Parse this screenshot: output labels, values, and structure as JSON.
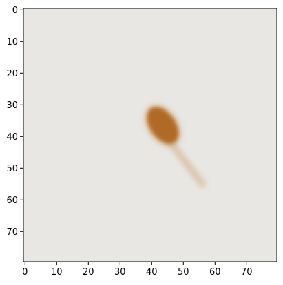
{
  "chart_data": {
    "type": "heatmap",
    "title": "",
    "xlabel": "",
    "ylabel": "",
    "image_size": [
      80,
      80
    ],
    "xlim": [
      -0.5,
      79.5
    ],
    "ylim": [
      79.5,
      -0.5
    ],
    "y_axis_inverted": true,
    "grid": false,
    "x_ticks": [
      0,
      10,
      20,
      30,
      40,
      50,
      60,
      70
    ],
    "y_ticks": [
      0,
      10,
      20,
      30,
      40,
      50,
      60,
      70
    ],
    "x_tick_labels": [
      "0",
      "10",
      "20",
      "30",
      "40",
      "50",
      "60",
      "70"
    ],
    "y_tick_labels": [
      "0",
      "10",
      "20",
      "30",
      "40",
      "50",
      "60",
      "70"
    ],
    "background_color": "#e9e7e3",
    "blob": {
      "center": [
        43.5,
        36.5
      ],
      "radius_x": 4,
      "radius_y": 6.5,
      "rotation_deg": -35,
      "color": "#b06a26"
    },
    "tail": {
      "from": [
        46,
        42
      ],
      "to": [
        56,
        55
      ],
      "color": "#c89a6a"
    }
  }
}
